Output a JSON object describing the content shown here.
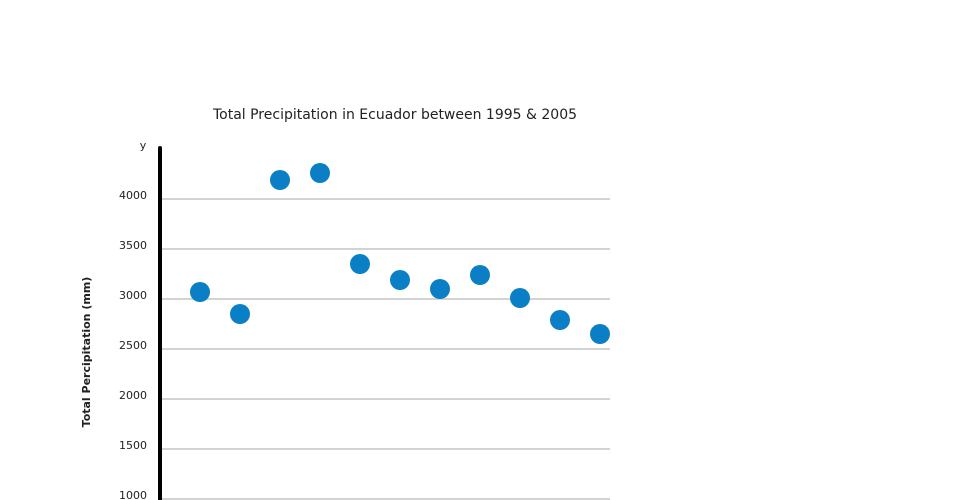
{
  "chart_data": {
    "type": "scatter",
    "title": "Total Precipitation in Ecuador between 1995 & 2005",
    "y_axis_title": "y",
    "y_label": "Total Percipitation (mm)",
    "values": [
      3070,
      2850,
      4190,
      4260,
      3350,
      3190,
      3100,
      3240,
      3010,
      2790,
      2650
    ],
    "color": "#0a7fc6",
    "ylim": [
      1000,
      4510
    ],
    "yticks": [
      1000,
      1500,
      2000,
      2500,
      3000,
      3500,
      4000
    ],
    "grid": true
  }
}
